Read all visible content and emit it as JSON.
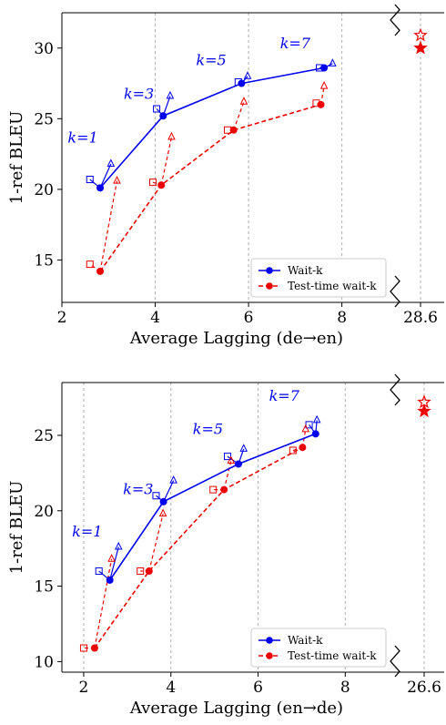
{
  "chart_data": [
    {
      "type": "line",
      "xlabel": "Average Lagging (de→en)",
      "ylabel": "1-ref BLEU",
      "xlim": [
        2,
        9.1
      ],
      "ylim": [
        12,
        32.5
      ],
      "xticks": [
        "2",
        "4",
        "6",
        "8"
      ],
      "yticks": [
        "15",
        "20",
        "25",
        "30"
      ],
      "break_tick_label": "28.6",
      "k_labels": [
        {
          "text": "k=1",
          "x": 2.45,
          "y": 23.3
        },
        {
          "text": "k=3",
          "x": 3.65,
          "y": 26.4
        },
        {
          "text": "k=5",
          "x": 5.2,
          "y": 28.8
        },
        {
          "text": "k=7",
          "x": 7.0,
          "y": 30.0
        }
      ],
      "series": [
        {
          "name": "Wait-k",
          "color": "#0000ee",
          "dashed": false,
          "points": [
            [
              2.82,
              20.1
            ],
            [
              4.17,
              25.2
            ],
            [
              5.85,
              27.5
            ],
            [
              7.62,
              28.6
            ]
          ]
        },
        {
          "name": "Test-time wait-k",
          "color": "#ee0000",
          "dashed": true,
          "points": [
            [
              2.82,
              14.2
            ],
            [
              4.13,
              20.3
            ],
            [
              5.68,
              24.2
            ],
            [
              7.55,
              26.0
            ]
          ]
        }
      ],
      "square_markers": [
        {
          "color": "#0000ee",
          "points": [
            [
              2.6,
              20.7
            ],
            [
              4.03,
              25.7
            ],
            [
              5.78,
              27.6
            ],
            [
              7.52,
              28.6
            ]
          ]
        },
        {
          "color": "#ee0000",
          "points": [
            [
              2.6,
              14.7
            ],
            [
              3.95,
              20.5
            ],
            [
              5.55,
              24.2
            ],
            [
              7.45,
              26.1
            ]
          ]
        }
      ],
      "triangle_markers": [
        {
          "color": "#0000ee",
          "points": [
            [
              3.05,
              21.8
            ],
            [
              4.32,
              26.6
            ],
            [
              5.98,
              28.0
            ],
            [
              7.8,
              28.9
            ]
          ]
        },
        {
          "color": "#ee0000",
          "points": [
            [
              3.18,
              20.6
            ],
            [
              4.35,
              23.7
            ],
            [
              5.9,
              26.2
            ],
            [
              7.62,
              27.3
            ]
          ]
        }
      ],
      "stars": [
        {
          "color": "#ee0000",
          "filled": true,
          "y": 30.0
        },
        {
          "color": "#ee0000",
          "filled": false,
          "y": 30.9
        }
      ],
      "legend": "bottom-right",
      "grid": "vertical dashed"
    },
    {
      "type": "line",
      "xlabel": "Average Lagging (en→de)",
      "ylabel": "1-ref BLEU",
      "xlim": [
        1.5,
        9.1
      ],
      "ylim": [
        9.3,
        28.5
      ],
      "xticks": [
        "2",
        "4",
        "6",
        "8"
      ],
      "yticks": [
        "10",
        "15",
        "20",
        "25"
      ],
      "break_tick_label": "26.6",
      "k_labels": [
        {
          "text": "k=1",
          "x": 2.08,
          "y": 18.3
        },
        {
          "text": "k=3",
          "x": 3.25,
          "y": 21.1
        },
        {
          "text": "k=5",
          "x": 4.85,
          "y": 25.1
        },
        {
          "text": "k=7",
          "x": 6.6,
          "y": 27.3
        }
      ],
      "series": [
        {
          "name": "Wait-k",
          "color": "#0000ee",
          "dashed": false,
          "points": [
            [
              2.6,
              15.4
            ],
            [
              3.83,
              20.6
            ],
            [
              5.55,
              23.1
            ],
            [
              7.32,
              25.1
            ]
          ]
        },
        {
          "name": "Test-time wait-k",
          "color": "#ee0000",
          "dashed": true,
          "points": [
            [
              2.25,
              10.9
            ],
            [
              3.5,
              16.0
            ],
            [
              5.22,
              21.4
            ],
            [
              7.02,
              24.2
            ]
          ]
        }
      ],
      "square_markers": [
        {
          "color": "#0000ee",
          "points": [
            [
              2.35,
              16.0
            ],
            [
              3.66,
              21.0
            ],
            [
              5.3,
              23.6
            ],
            [
              7.17,
              25.7
            ]
          ]
        },
        {
          "color": "#ee0000",
          "points": [
            [
              2.0,
              10.9
            ],
            [
              3.3,
              16.0
            ],
            [
              4.97,
              21.4
            ],
            [
              6.8,
              24.0
            ]
          ]
        }
      ],
      "triangle_markers": [
        {
          "color": "#0000ee",
          "points": [
            [
              2.8,
              17.6
            ],
            [
              4.06,
              22.0
            ],
            [
              5.67,
              24.1
            ],
            [
              7.35,
              26.0
            ]
          ]
        },
        {
          "color": "#ee0000",
          "points": [
            [
              2.64,
              16.8
            ],
            [
              3.82,
              19.8
            ],
            [
              5.38,
              23.3
            ],
            [
              7.09,
              25.4
            ]
          ]
        }
      ],
      "stars": [
        {
          "color": "#ee0000",
          "filled": true,
          "y": 26.6
        },
        {
          "color": "#ee0000",
          "filled": false,
          "y": 27.2
        }
      ],
      "legend": "bottom-right",
      "grid": "vertical dashed"
    }
  ]
}
